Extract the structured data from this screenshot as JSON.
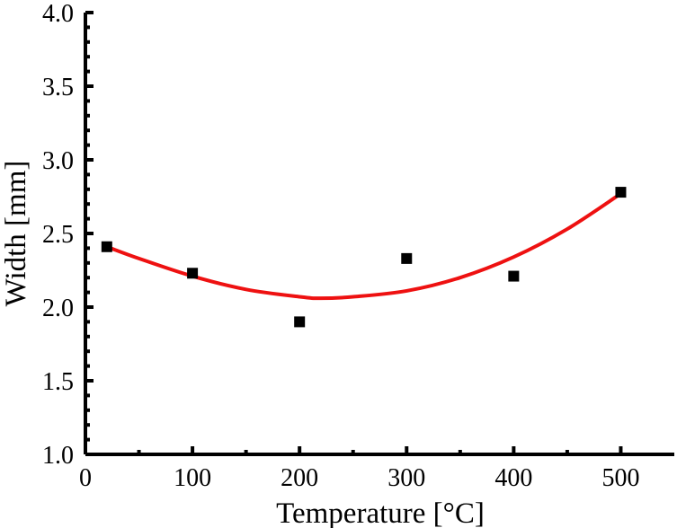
{
  "chart_data": {
    "type": "scatter",
    "xlabel": "Temperature [°C]",
    "ylabel": "Width [mm]",
    "xlim": [
      0,
      550
    ],
    "ylim": [
      1.0,
      4.0
    ],
    "x_ticks": [
      0,
      100,
      200,
      300,
      400,
      500
    ],
    "x_tick_labels": [
      "0",
      "100",
      "200",
      "300",
      "400",
      "500"
    ],
    "y_ticks": [
      1.0,
      1.5,
      2.0,
      2.5,
      3.0,
      3.5,
      4.0
    ],
    "y_tick_labels": [
      "1.0",
      "1.5",
      "2.0",
      "2.5",
      "3.0",
      "3.5",
      "4.0"
    ],
    "grid": false,
    "series": [
      {
        "type": "scatter",
        "marker": "square",
        "color": "#000000",
        "x": [
          20,
          100,
          200,
          300,
          400,
          500
        ],
        "y": [
          2.41,
          2.23,
          1.9,
          2.33,
          2.21,
          2.78
        ]
      },
      {
        "type": "line",
        "color": "#ee1111",
        "x": [
          20,
          50,
          100,
          150,
          200,
          220,
          250,
          300,
          350,
          400,
          450,
          500
        ],
        "y": [
          2.41,
          2.33,
          2.21,
          2.12,
          2.07,
          2.06,
          2.07,
          2.11,
          2.2,
          2.34,
          2.53,
          2.77
        ]
      }
    ]
  }
}
